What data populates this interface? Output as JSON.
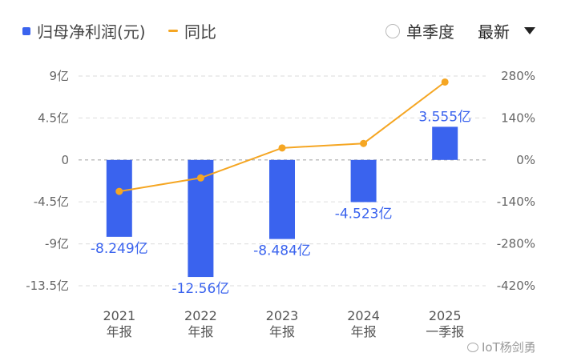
{
  "legend": {
    "bar_label": "归母净利润(元)",
    "line_label": "同比"
  },
  "controls": {
    "quarter_toggle_label": "单季度",
    "period_select_value": "最新"
  },
  "watermark": "IoT杨剑勇",
  "colors": {
    "bar": "#3a63ee",
    "line": "#f5a623"
  },
  "chart_data": {
    "type": "bar",
    "categories": [
      [
        "2021",
        "年报"
      ],
      [
        "2022",
        "年报"
      ],
      [
        "2023",
        "年报"
      ],
      [
        "2024",
        "年报"
      ],
      [
        "2025",
        "一季报"
      ]
    ],
    "series": [
      {
        "name": "归母净利润(元)",
        "type": "bar",
        "axis": "left",
        "values": [
          -8.249,
          -12.56,
          -8.484,
          -4.523,
          3.555
        ],
        "labels": [
          "-8.249亿",
          "-12.56亿",
          "-8.484亿",
          "-4.523亿",
          "3.555亿"
        ]
      },
      {
        "name": "同比",
        "type": "line",
        "axis": "right",
        "values": [
          -105,
          -60,
          40,
          55,
          260
        ]
      }
    ],
    "y_left": {
      "min": -13.5,
      "max": 9,
      "ticks": [
        9,
        4.5,
        0,
        -4.5,
        -9,
        -13.5
      ],
      "tick_labels": [
        "9亿",
        "4.5亿",
        "0",
        "-4.5亿",
        "-9亿",
        "-13.5亿"
      ]
    },
    "y_right": {
      "min": -420,
      "max": 280,
      "ticks": [
        280,
        140,
        0,
        -140,
        -280,
        -420
      ],
      "tick_labels": [
        "280%",
        "140%",
        "0%",
        "-140%",
        "-280%",
        "-420%"
      ]
    },
    "grid": true
  }
}
